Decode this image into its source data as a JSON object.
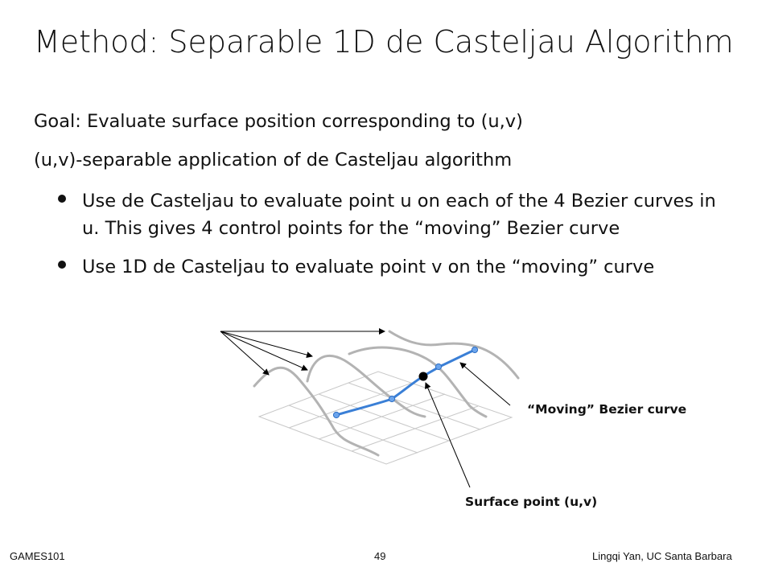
{
  "slide": {
    "title": "Method: Separable 1D de Casteljau Algorithm",
    "goal": "Goal: Evaluate surface position corresponding to (u,v)",
    "separable": "(u,v)-separable application of de Casteljau algorithm",
    "bullets": [
      {
        "line1": "Use de Casteljau to evaluate point u on each of the 4 Bezier curves in",
        "line2": "u. This gives 4 control points for the “moving” Bezier curve"
      },
      {
        "line1": "Use 1D de Casteljau to evaluate point v on the “moving” curve"
      }
    ]
  },
  "figure": {
    "label_moving_curve": "“Moving” Bezier curve",
    "label_surface_point": "Surface point (u,v)",
    "colors": {
      "curves": "#b3b3b3",
      "grid": "#c8c8c8",
      "moving_curve": "#3a7fd6",
      "point": "#000000",
      "arrows": "#000000"
    }
  },
  "footer": {
    "left": "GAMES101",
    "page": "49",
    "right": "Lingqi Yan, UC Santa Barbara"
  }
}
